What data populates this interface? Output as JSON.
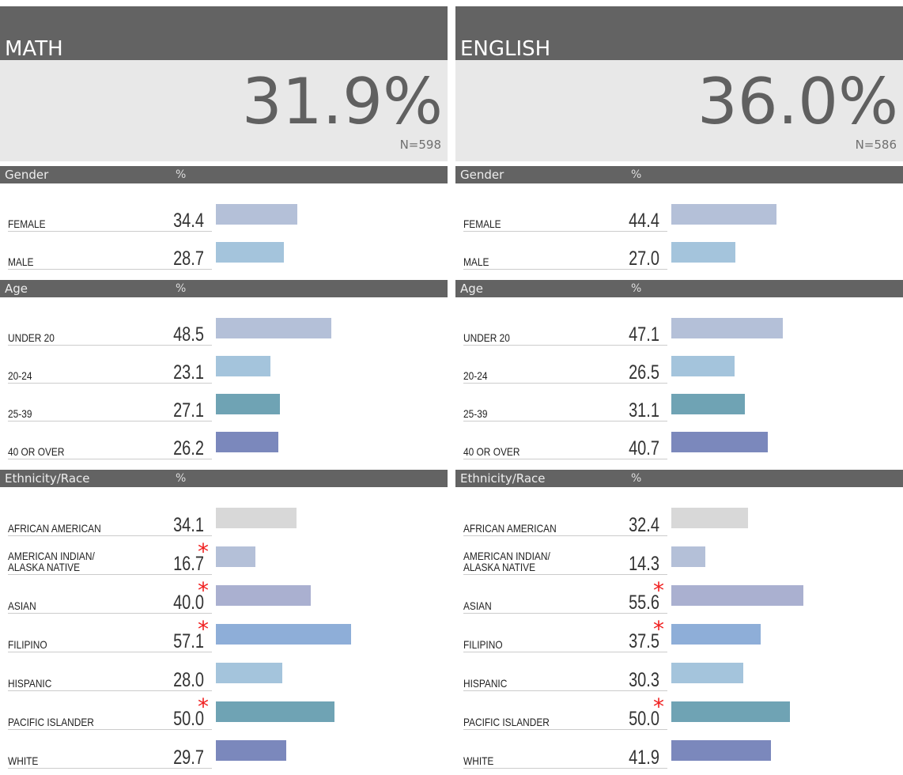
{
  "panels": [
    {
      "title": "MATH",
      "score": "31.9%",
      "n": "N=598",
      "sections": [
        {
          "name": "Gender",
          "pct": "%",
          "rows": [
            {
              "label": "FEMALE",
              "value": 34.4,
              "value_label": "34.4",
              "color": "#b4c0d8"
            },
            {
              "label": "MALE",
              "value": 28.7,
              "value_label": "28.7",
              "color": "#a4c4dc"
            }
          ]
        },
        {
          "name": "Age",
          "pct": "%",
          "rows": [
            {
              "label": "UNDER 20",
              "value": 48.5,
              "value_label": "48.5",
              "color": "#b4c0d8"
            },
            {
              "label": "20-24",
              "value": 23.1,
              "value_label": "23.1",
              "color": "#a4c4dc"
            },
            {
              "label": "25-39",
              "value": 27.1,
              "value_label": "27.1",
              "color": "#6fa3b4"
            },
            {
              "label": "40 OR OVER",
              "value": 26.2,
              "value_label": "26.2",
              "color": "#7b88bc"
            }
          ]
        },
        {
          "name": "Ethnicity/Race",
          "pct": "%",
          "rows": [
            {
              "label": "AFRICAN AMERICAN",
              "value": 34.1,
              "value_label": "34.1",
              "color": "#d8d8d8"
            },
            {
              "label": "AMERICAN INDIAN/\nALASKA NATIVE",
              "value": 16.7,
              "value_label": "16.7",
              "flag": "*",
              "color": "#b4c0d8"
            },
            {
              "label": "ASIAN",
              "value": 40.0,
              "value_label": "40.0",
              "flag": "*",
              "color": "#aab0d0"
            },
            {
              "label": "FILIPINO",
              "value": 57.1,
              "value_label": "57.1",
              "flag": "*",
              "color": "#8eaed8"
            },
            {
              "label": "HISPANIC",
              "value": 28.0,
              "value_label": "28.0",
              "color": "#a4c4dc"
            },
            {
              "label": "PACIFIC ISLANDER",
              "value": 50.0,
              "value_label": "50.0",
              "flag": "*",
              "color": "#6fa3b4"
            },
            {
              "label": "WHITE",
              "value": 29.7,
              "value_label": "29.7",
              "color": "#7b88bc"
            }
          ]
        }
      ]
    },
    {
      "title": "ENGLISH",
      "score": "36.0%",
      "n": "N=586",
      "sections": [
        {
          "name": "Gender",
          "pct": "%",
          "rows": [
            {
              "label": "FEMALE",
              "value": 44.4,
              "value_label": "44.4",
              "color": "#b4c0d8"
            },
            {
              "label": "MALE",
              "value": 27.0,
              "value_label": "27.0",
              "color": "#a4c4dc"
            }
          ]
        },
        {
          "name": "Age",
          "pct": "%",
          "rows": [
            {
              "label": "UNDER 20",
              "value": 47.1,
              "value_label": "47.1",
              "color": "#b4c0d8"
            },
            {
              "label": "20-24",
              "value": 26.5,
              "value_label": "26.5",
              "color": "#a4c4dc"
            },
            {
              "label": "25-39",
              "value": 31.1,
              "value_label": "31.1",
              "color": "#6fa3b4"
            },
            {
              "label": "40 OR OVER",
              "value": 40.7,
              "value_label": "40.7",
              "color": "#7b88bc"
            }
          ]
        },
        {
          "name": "Ethnicity/Race",
          "pct": "%",
          "rows": [
            {
              "label": "AFRICAN AMERICAN",
              "value": 32.4,
              "value_label": "32.4",
              "color": "#d8d8d8"
            },
            {
              "label": "AMERICAN INDIAN/\nALASKA NATIVE",
              "value": 14.3,
              "value_label": "14.3",
              "color": "#b4c0d8"
            },
            {
              "label": "ASIAN",
              "value": 55.6,
              "value_label": "55.6",
              "flag": "*",
              "color": "#aab0d0"
            },
            {
              "label": "FILIPINO",
              "value": 37.5,
              "value_label": "37.5",
              "flag": "*",
              "color": "#8eaed8"
            },
            {
              "label": "HISPANIC",
              "value": 30.3,
              "value_label": "30.3",
              "color": "#a4c4dc"
            },
            {
              "label": "PACIFIC ISLANDER",
              "value": 50.0,
              "value_label": "50.0",
              "flag": "*",
              "color": "#6fa3b4"
            },
            {
              "label": "WHITE",
              "value": 41.9,
              "value_label": "41.9",
              "color": "#7b88bc"
            }
          ]
        }
      ]
    }
  ]
}
